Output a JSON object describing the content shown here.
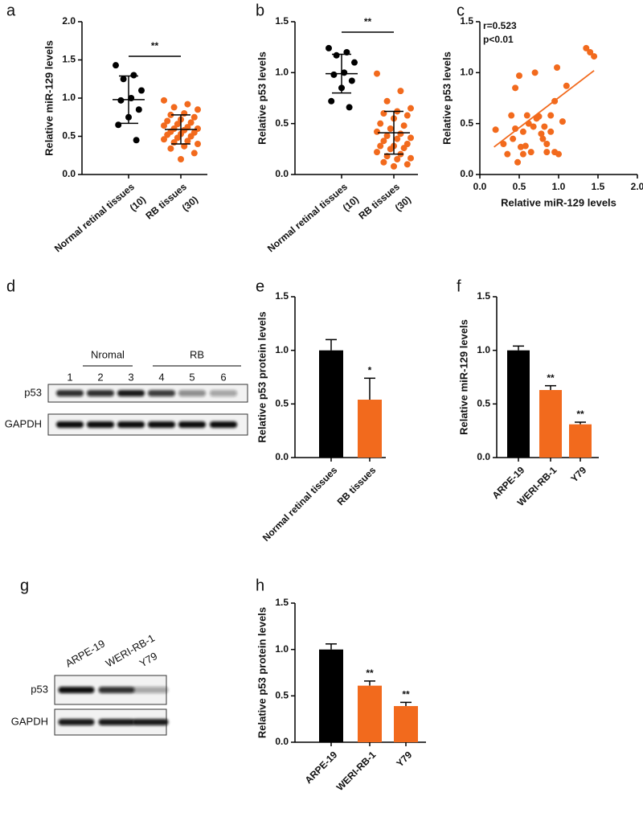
{
  "chart_data": [
    {
      "type": "strip",
      "panel": "a",
      "y_label": "Relative miR-129 levels",
      "categories": [
        "Normal retinal tissues",
        "RB tissues"
      ],
      "n_labels": [
        "(10)",
        "(30)"
      ],
      "series": [
        {
          "name": "Normal retinal tissues",
          "color": "#000000",
          "values": [
            1.43,
            1.3,
            1.25,
            1.1,
            1.0,
            0.97,
            0.85,
            0.75,
            0.65,
            0.45
          ],
          "mean": 0.98,
          "sd": 0.31
        },
        {
          "name": "RB tissues",
          "color": "#f26a1d",
          "values": [
            0.97,
            0.92,
            0.88,
            0.85,
            0.8,
            0.78,
            0.75,
            0.72,
            0.7,
            0.68,
            0.66,
            0.64,
            0.62,
            0.6,
            0.6,
            0.58,
            0.56,
            0.55,
            0.53,
            0.52,
            0.5,
            0.48,
            0.46,
            0.44,
            0.42,
            0.4,
            0.37,
            0.34,
            0.28,
            0.2
          ],
          "mean": 0.59,
          "sd": 0.19
        }
      ],
      "significance": "**",
      "ylim": [
        0,
        2
      ],
      "yticks": [
        {
          "value": 0,
          "label": "0.0"
        },
        0.5,
        {
          "value": 1,
          "label": "1.0"
        },
        1.5,
        {
          "value": 2,
          "label": "2.0"
        }
      ]
    },
    {
      "type": "strip",
      "panel": "b",
      "y_label": "Relative p53 levels",
      "categories": [
        "Normal retinal tissues",
        "RB tissues"
      ],
      "n_labels": [
        "(10)",
        "(30)"
      ],
      "series": [
        {
          "name": "Normal retinal tissues",
          "color": "#000000",
          "values": [
            1.24,
            1.2,
            1.17,
            1.1,
            1.0,
            0.98,
            0.92,
            0.85,
            0.72,
            0.66
          ],
          "mean": 0.99,
          "sd": 0.19
        },
        {
          "name": "RB tissues",
          "color": "#f26a1d",
          "values": [
            0.99,
            0.82,
            0.72,
            0.65,
            0.62,
            0.6,
            0.58,
            0.55,
            0.5,
            0.48,
            0.45,
            0.42,
            0.4,
            0.38,
            0.36,
            0.35,
            0.33,
            0.3,
            0.28,
            0.28,
            0.26,
            0.25,
            0.22,
            0.2,
            0.18,
            0.16,
            0.15,
            0.12,
            0.1,
            0.08
          ],
          "mean": 0.41,
          "sd": 0.21
        }
      ],
      "significance": "**",
      "ylim": [
        0,
        1.5
      ],
      "yticks": [
        {
          "value": 0,
          "label": "0.0"
        },
        0.5,
        {
          "value": 1,
          "label": "1.0"
        },
        1.5
      ]
    },
    {
      "type": "scatter",
      "panel": "c",
      "x_label": "Relative miR-129 levels",
      "y_label": "Relative p53 levels",
      "annotations": [
        "r=0.523",
        "p<0.01"
      ],
      "color": "#f26a1d",
      "x": [
        0.2,
        0.3,
        0.35,
        0.4,
        0.42,
        0.45,
        0.48,
        0.5,
        0.52,
        0.55,
        0.55,
        0.58,
        0.6,
        0.62,
        0.65,
        0.68,
        0.7,
        0.72,
        0.75,
        0.78,
        0.8,
        0.82,
        0.85,
        0.9,
        0.9,
        0.95,
        0.95,
        0.98,
        1.0,
        1.05,
        1.1,
        1.35,
        1.4,
        1.45,
        0.45,
        0.85
      ],
      "y": [
        0.44,
        0.3,
        0.2,
        0.58,
        0.35,
        0.45,
        0.12,
        0.97,
        0.27,
        0.42,
        0.2,
        0.28,
        0.58,
        0.5,
        0.22,
        0.47,
        1.0,
        0.55,
        0.57,
        0.4,
        0.35,
        0.47,
        0.3,
        0.58,
        0.42,
        0.72,
        0.22,
        1.05,
        0.2,
        0.52,
        0.87,
        1.24,
        1.2,
        1.16,
        0.85,
        0.22
      ],
      "trendline": {
        "x": [
          0.18,
          1.45
        ],
        "y": [
          0.27,
          1.02
        ]
      },
      "xlim": [
        0,
        2
      ],
      "xticks": [
        {
          "value": 0,
          "label": "0.0"
        },
        0.5,
        {
          "value": 1,
          "label": "1.0"
        },
        1.5,
        {
          "value": 2,
          "label": "2.0"
        }
      ],
      "ylim": [
        0,
        1.5
      ],
      "yticks": [
        {
          "value": 0,
          "label": "0.0"
        },
        0.5,
        {
          "value": 1,
          "label": "1.0"
        },
        1.5
      ]
    },
    {
      "type": "blot",
      "panel": "d",
      "groups": [
        "Nromal",
        "RB"
      ],
      "lanes": [
        "1",
        "2",
        "3",
        "4",
        "5",
        "6"
      ],
      "series": [
        {
          "name": "p53",
          "values": [
            0.85,
            0.85,
            0.95,
            0.8,
            0.45,
            0.35
          ]
        },
        {
          "name": "GAPDH",
          "values": [
            1,
            1,
            1,
            1,
            1,
            1
          ]
        }
      ]
    },
    {
      "type": "bar",
      "panel": "e",
      "y_label": "Relative p53 protein levels",
      "categories": [
        "Normal retinal tissues",
        "RB tissues"
      ],
      "values": [
        1.0,
        0.54
      ],
      "errors": [
        0.1,
        0.2
      ],
      "colors": [
        "#000000",
        "#f26a1d"
      ],
      "bar_labels": [
        null,
        "*"
      ],
      "ylim": [
        0,
        1.5
      ],
      "yticks": [
        {
          "value": 0,
          "label": "0.0"
        },
        0.5,
        {
          "value": 1,
          "label": "1.0"
        },
        1.5
      ]
    },
    {
      "type": "bar",
      "panel": "f",
      "y_label": "Relative miR-129 levels",
      "categories": [
        "ARPE-19",
        "WERI-RB-1",
        "Y79"
      ],
      "values": [
        1.0,
        0.63,
        0.31
      ],
      "errors": [
        0.04,
        0.04,
        0.02
      ],
      "colors": [
        "#000000",
        "#f26a1d",
        "#f26a1d"
      ],
      "bar_labels": [
        null,
        "**",
        "**"
      ],
      "ylim": [
        0,
        1.5
      ],
      "yticks": [
        {
          "value": 0,
          "label": "0.0"
        },
        0.5,
        {
          "value": 1,
          "label": "1.0"
        },
        1.5
      ]
    },
    {
      "type": "blot",
      "panel": "g",
      "lanes": [
        "ARPE-19",
        "WERI-RB-1",
        "Y79"
      ],
      "series": [
        {
          "name": "p53",
          "values": [
            1.0,
            0.85,
            0.35
          ]
        },
        {
          "name": "GAPDH",
          "values": [
            0.95,
            0.95,
            0.95
          ]
        }
      ]
    },
    {
      "type": "bar",
      "panel": "h",
      "y_label": "Relative p53 protein levels",
      "categories": [
        "ARPE-19",
        "WERI-RB-1",
        "Y79"
      ],
      "values": [
        1.0,
        0.61,
        0.39
      ],
      "errors": [
        0.06,
        0.05,
        0.04
      ],
      "colors": [
        "#000000",
        "#f26a1d",
        "#f26a1d"
      ],
      "bar_labels": [
        null,
        "**",
        "**"
      ],
      "ylim": [
        0,
        1.5
      ],
      "yticks": [
        {
          "value": 0,
          "label": "0.0"
        },
        0.5,
        {
          "value": 1,
          "label": "1.0"
        },
        1.5
      ]
    }
  ]
}
